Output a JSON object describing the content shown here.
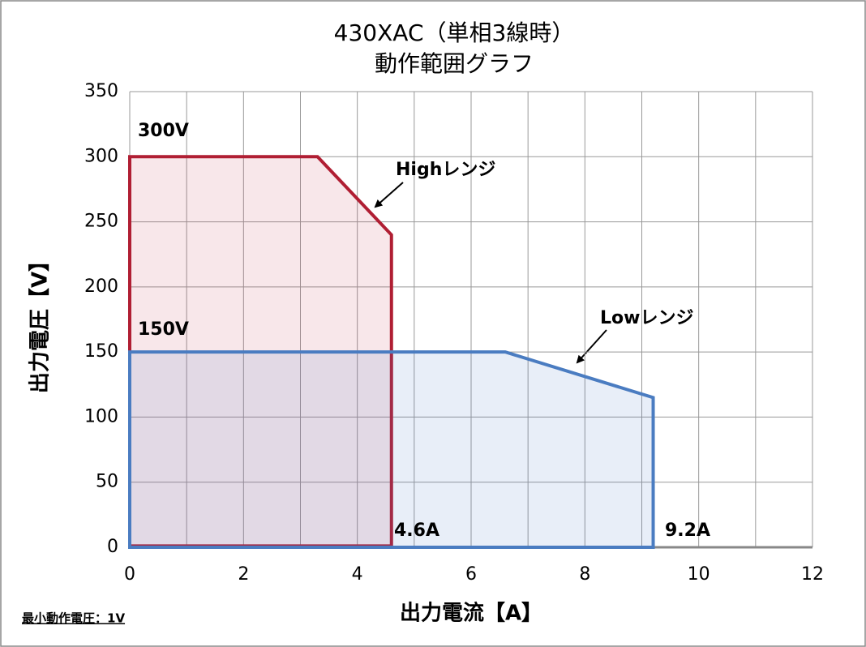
{
  "chart_data": {
    "type": "area",
    "title": "430XAC（単相3線時）",
    "subtitle": "動作範囲グラフ",
    "x_label": "出力電流【A】",
    "y_label": "出力電圧【V】",
    "series": [
      {
        "name": "Highレンジ",
        "color": "#b01e33",
        "x": [
          0,
          0,
          3.3,
          4.6,
          4.6,
          0
        ],
        "values": [
          1,
          300,
          300,
          240,
          1,
          1
        ]
      },
      {
        "name": "Lowレンジ",
        "color": "#4a7cc1",
        "x": [
          0,
          0,
          6.6,
          9.2,
          9.2,
          0
        ],
        "values": [
          0,
          150,
          150,
          115,
          0,
          0
        ]
      }
    ],
    "annotations": [
      "300V",
      "150V",
      "4.6A",
      "9.2A"
    ],
    "note": "最小動作電圧：1V",
    "xlim": [
      0,
      12
    ],
    "xticks": [
      0,
      2,
      4,
      6,
      8,
      10,
      12
    ],
    "xminorticks": [
      1,
      3,
      5,
      7,
      9,
      11
    ],
    "ylim": [
      0,
      350
    ],
    "yticks": [
      0,
      50,
      100,
      150,
      200,
      250,
      300,
      350
    ],
    "grid": true
  }
}
